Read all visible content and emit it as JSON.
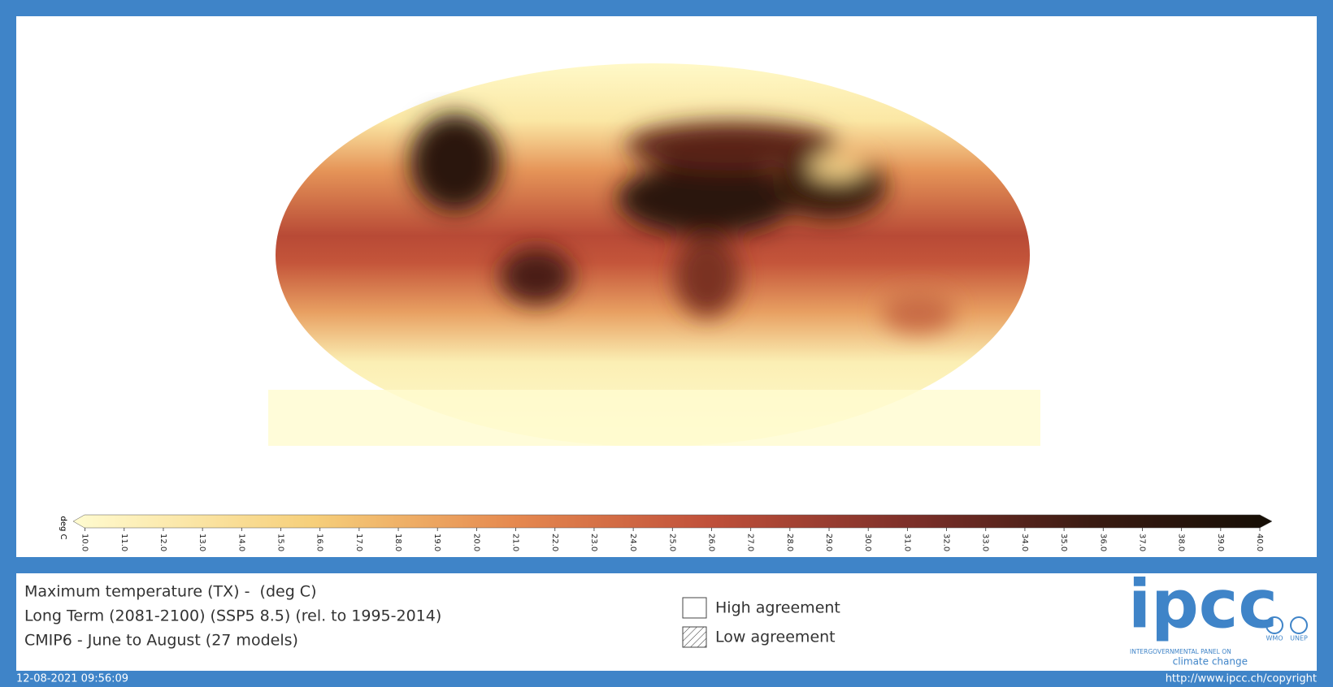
{
  "description_lines": [
    "Maximum temperature (TX) -  (deg C)",
    "Long Term (2081-2100) (SSP5 8.5) (rel. to 1995-2014)",
    "CMIP6 - June to August (27 models)"
  ],
  "colorbar": {
    "unit": "deg C",
    "ticks": [
      {
        "value": 10,
        "label": "10.0"
      },
      {
        "value": 11,
        "label": "11.0"
      },
      {
        "value": 12,
        "label": "12.0"
      },
      {
        "value": 13,
        "label": "13.0"
      },
      {
        "value": 14,
        "label": "14.0"
      },
      {
        "value": 15,
        "label": "15.0"
      },
      {
        "value": 16,
        "label": "16.0"
      },
      {
        "value": 17,
        "label": "17.0"
      },
      {
        "value": 18,
        "label": "18.0"
      },
      {
        "value": 19,
        "label": "19.0"
      },
      {
        "value": 20,
        "label": "20.0"
      },
      {
        "value": 21,
        "label": "21.0"
      },
      {
        "value": 22,
        "label": "22.0"
      },
      {
        "value": 23,
        "label": "23.0"
      },
      {
        "value": 24,
        "label": "24.0"
      },
      {
        "value": 25,
        "label": "25.0"
      },
      {
        "value": 26,
        "label": "26.0"
      },
      {
        "value": 27,
        "label": "27.0"
      },
      {
        "value": 28,
        "label": "28.0"
      },
      {
        "value": 29,
        "label": "29.0"
      },
      {
        "value": 30,
        "label": "30.0"
      },
      {
        "value": 31,
        "label": "31.0"
      },
      {
        "value": 32,
        "label": "32.0"
      },
      {
        "value": 33,
        "label": "33.0"
      },
      {
        "value": 34,
        "label": "34.0"
      },
      {
        "value": 35,
        "label": "35.0"
      },
      {
        "value": 36,
        "label": "36.0"
      },
      {
        "value": 37,
        "label": "37.0"
      },
      {
        "value": 38,
        "label": "38.0"
      },
      {
        "value": 39,
        "label": "39.0"
      },
      {
        "value": 40,
        "label": "40.0"
      }
    ]
  },
  "legend": [
    "High agreement",
    "Low agreement"
  ],
  "logo": {
    "name": "ipcc",
    "line1": "INTERGOVERNMENTAL PANEL ON",
    "line2": "climate change",
    "partner1": "WMO",
    "partner2": "UNEP"
  },
  "footer": {
    "timestamp": "12-08-2021 09:56:09",
    "copyright": "http://www.ipcc.ch/copyright"
  }
}
